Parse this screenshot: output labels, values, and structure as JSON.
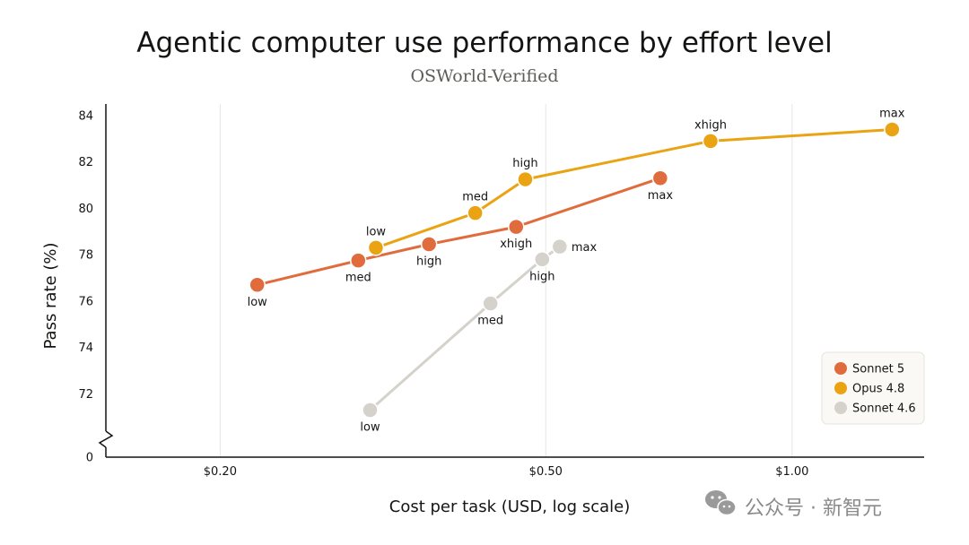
{
  "chart_data": {
    "type": "line",
    "title": "Agentic computer use performance by effort level",
    "subtitle": "OSWorld-Verified",
    "xlabel": "Cost per task (USD, log scale)",
    "ylabel": "Pass rate (%)",
    "x_scale": "log",
    "xlim": [
      0.145,
      1.45
    ],
    "ylim": [
      70.7,
      84.5
    ],
    "y_axis_break": true,
    "y_break_label": "0",
    "x_ticks": [
      {
        "value": 0.2,
        "label": "$0.20"
      },
      {
        "value": 0.5,
        "label": "$0.50"
      },
      {
        "value": 1.0,
        "label": "$1.00"
      }
    ],
    "y_ticks": [
      {
        "value": 72,
        "label": "72"
      },
      {
        "value": 74,
        "label": "74"
      },
      {
        "value": 76,
        "label": "76"
      },
      {
        "value": 78,
        "label": "78"
      },
      {
        "value": 80,
        "label": "80"
      },
      {
        "value": 82,
        "label": "82"
      },
      {
        "value": 84,
        "label": "84"
      }
    ],
    "grid": "vertical",
    "legend_position": "bottom-right",
    "series": [
      {
        "name": "Sonnet 5",
        "color": "#e06c3d",
        "points": [
          {
            "label": "low",
            "x": 0.222,
            "y": 76.7,
            "label_pos": "below"
          },
          {
            "label": "med",
            "x": 0.295,
            "y": 77.75,
            "label_pos": "below"
          },
          {
            "label": "high",
            "x": 0.36,
            "y": 78.45,
            "label_pos": "below"
          },
          {
            "label": "xhigh",
            "x": 0.46,
            "y": 79.2,
            "label_pos": "below"
          },
          {
            "label": "max",
            "x": 0.69,
            "y": 81.3,
            "label_pos": "below"
          }
        ]
      },
      {
        "name": "Opus 4.8",
        "color": "#e9a313",
        "points": [
          {
            "label": "low",
            "x": 0.31,
            "y": 78.3,
            "label_pos": "above"
          },
          {
            "label": "med",
            "x": 0.41,
            "y": 79.8,
            "label_pos": "above"
          },
          {
            "label": "high",
            "x": 0.472,
            "y": 81.25,
            "label_pos": "above"
          },
          {
            "label": "xhigh",
            "x": 0.795,
            "y": 82.9,
            "label_pos": "above"
          },
          {
            "label": "max",
            "x": 1.325,
            "y": 83.4,
            "label_pos": "above"
          }
        ]
      },
      {
        "name": "Sonnet 4.6",
        "color": "#d4d2cb",
        "points": [
          {
            "label": "low",
            "x": 0.305,
            "y": 71.3,
            "label_pos": "below"
          },
          {
            "label": "med",
            "x": 0.428,
            "y": 75.9,
            "label_pos": "below"
          },
          {
            "label": "high",
            "x": 0.495,
            "y": 77.8,
            "label_pos": "below"
          },
          {
            "label": "max",
            "x": 0.52,
            "y": 78.35,
            "label_pos": "right"
          }
        ]
      }
    ]
  },
  "watermark": {
    "icon": "wechat-icon",
    "text": "公众号 · 新智元"
  }
}
